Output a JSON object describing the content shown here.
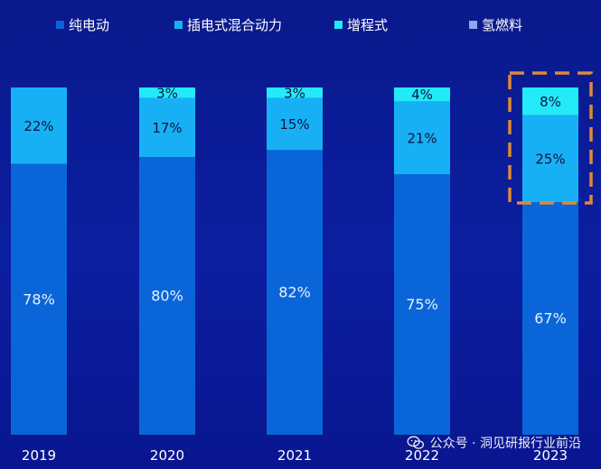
{
  "chart_data": {
    "type": "bar",
    "stacked": true,
    "categories": [
      "2019",
      "2020",
      "2021",
      "2022",
      "2023"
    ],
    "series": [
      {
        "name": "纯电动",
        "color": "#0a66d8",
        "values": [
          78,
          80,
          82,
          75,
          67
        ],
        "labels": [
          "78%",
          "80%",
          "82%",
          "75%",
          "67%"
        ]
      },
      {
        "name": "插电式混合动力",
        "color": "#18b0f5",
        "values": [
          22,
          17,
          15,
          21,
          25
        ],
        "labels": [
          "22%",
          "17%",
          "15%",
          "21%",
          "25%"
        ]
      },
      {
        "name": "增程式",
        "color": "#22eaf8",
        "values": [
          0,
          3,
          3,
          4,
          8
        ],
        "labels": [
          "",
          "3%",
          "3%",
          "4%",
          "8%"
        ]
      },
      {
        "name": "氢燃料",
        "color": "#8fa6e8",
        "values": [
          0,
          0,
          0,
          0,
          0
        ],
        "labels": [
          "",
          "",
          "",
          "",
          ""
        ]
      }
    ],
    "ylim": [
      0,
      100
    ],
    "legend": "top",
    "highlight_category": "2023",
    "highlight_color": "#e0883a"
  },
  "watermark": {
    "text": "公众号 · 洞见研报行业前沿"
  }
}
